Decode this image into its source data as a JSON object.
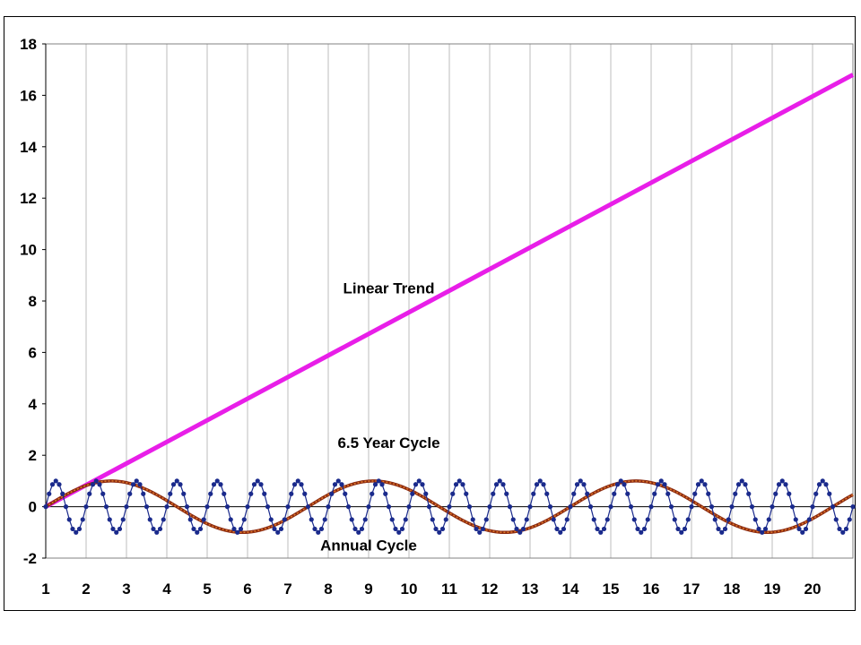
{
  "chart_data": {
    "type": "line",
    "title": "",
    "xlabel": "",
    "ylabel": "",
    "xlim": [
      1,
      21
    ],
    "ylim": [
      -2,
      18
    ],
    "x_ticks": [
      1,
      2,
      3,
      4,
      5,
      6,
      7,
      8,
      9,
      10,
      11,
      12,
      13,
      14,
      15,
      16,
      17,
      18,
      19,
      20
    ],
    "y_ticks": [
      -2,
      0,
      2,
      4,
      6,
      8,
      10,
      12,
      14,
      16,
      18
    ],
    "grid": {
      "vertical": true,
      "horizontal": false
    },
    "legend": "none",
    "series": [
      {
        "label": "Linear Trend",
        "color": "#e81ee8",
        "function": "linear",
        "start": [
          1,
          0
        ],
        "end": [
          21,
          16.8
        ]
      },
      {
        "label": "6.5 Year Cycle",
        "color": "#8b2a10",
        "marker_color": "#e07a2a",
        "function": "sine",
        "amplitude": 1,
        "period": 6.5,
        "x_start": 1,
        "x_end": 21
      },
      {
        "label": "Annual Cycle",
        "color": "#1a2a8c",
        "function": "sine",
        "amplitude": 1,
        "period": 1,
        "x_start": 1,
        "x_end": 21,
        "points_per_period": 12
      }
    ],
    "annotations": [
      {
        "text": "Linear Trend",
        "x": 9.5,
        "y": 8.5
      },
      {
        "text": "6.5 Year Cycle",
        "x": 9.5,
        "y": 2.5
      },
      {
        "text": "Annual Cycle",
        "x": 9.0,
        "y": -1.5
      }
    ]
  }
}
